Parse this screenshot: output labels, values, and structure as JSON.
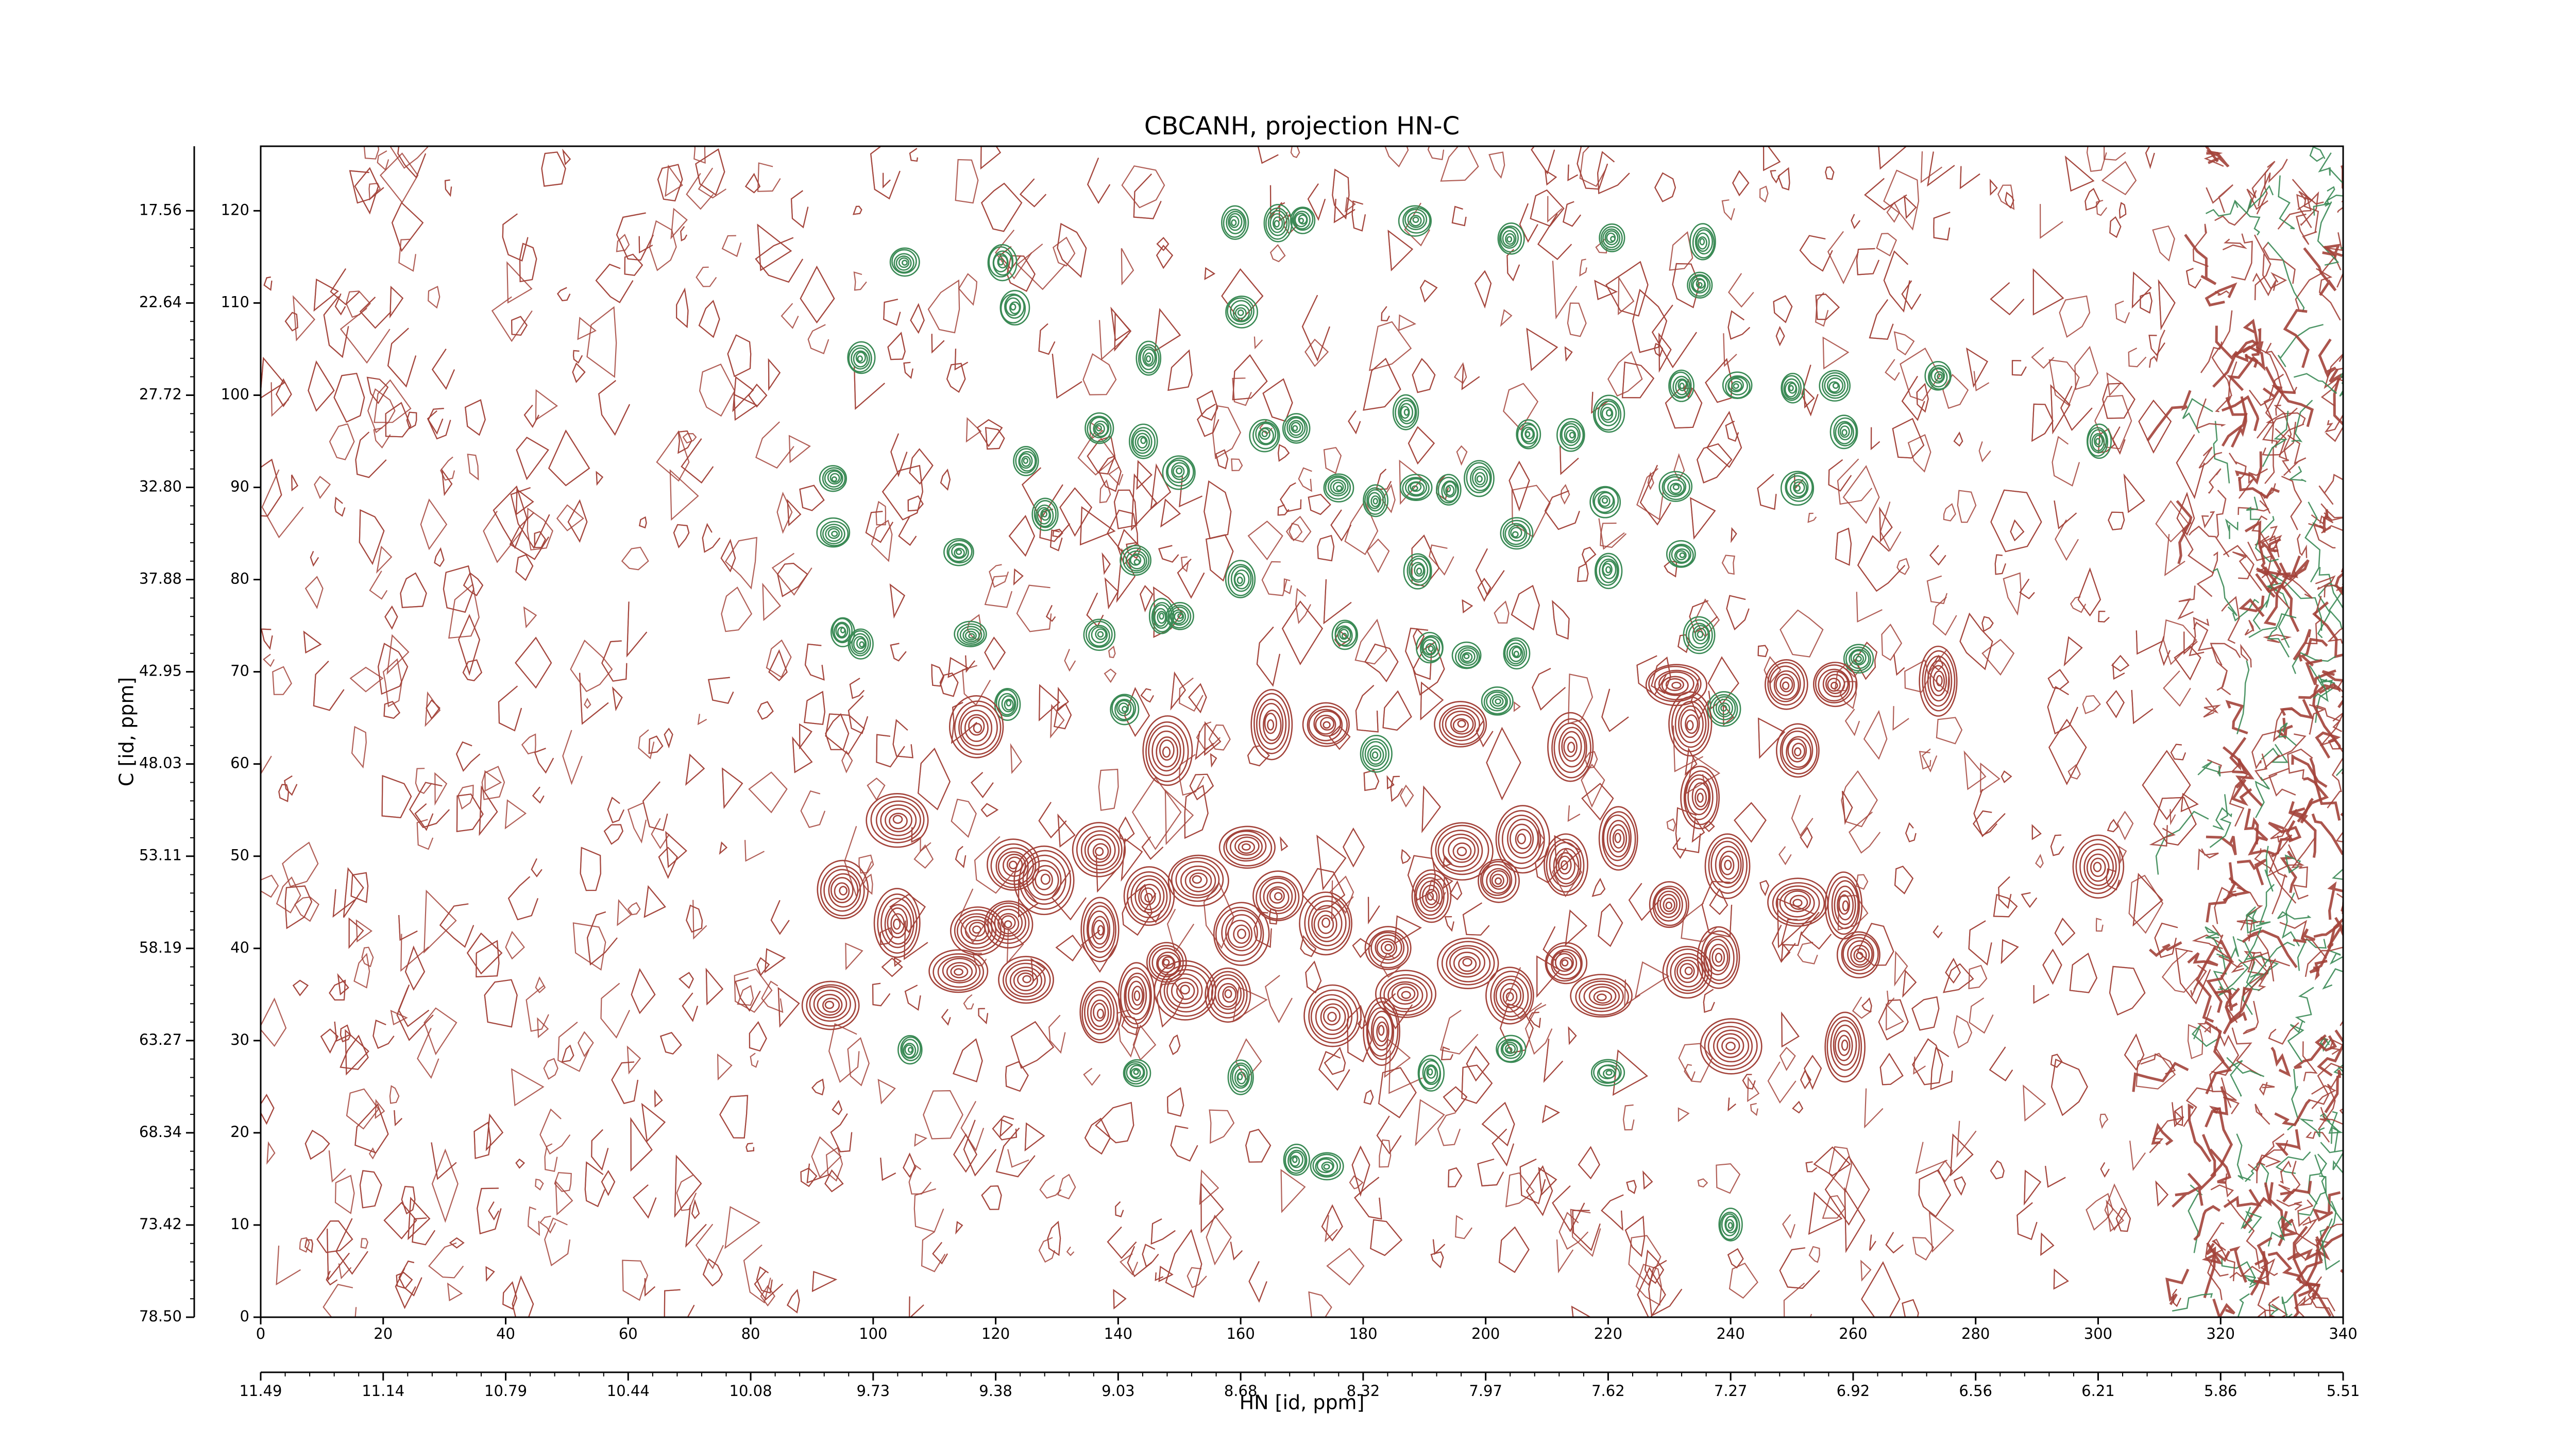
{
  "chart_data": {
    "type": "contour",
    "title": "CBCANH, projection HN-C",
    "xlabel": "HN [id, ppm]",
    "ylabel": "C [id, ppm]",
    "xlim": [
      0,
      340
    ],
    "ylim": [
      0,
      127
    ],
    "xticks": [
      0,
      20,
      40,
      60,
      80,
      100,
      120,
      140,
      160,
      180,
      200,
      220,
      240,
      260,
      280,
      300,
      320,
      340
    ],
    "yticks": [
      0,
      10,
      20,
      30,
      40,
      50,
      60,
      70,
      80,
      90,
      100,
      110,
      120
    ],
    "x2ticks": [
      {
        "value": 0,
        "label": "11.49"
      },
      {
        "value": 20,
        "label": "11.14"
      },
      {
        "value": 40,
        "label": "10.79"
      },
      {
        "value": 60,
        "label": "10.44"
      },
      {
        "value": 80,
        "label": "10.08"
      },
      {
        "value": 100,
        "label": "9.73"
      },
      {
        "value": 120,
        "label": "9.38"
      },
      {
        "value": 140,
        "label": "9.03"
      },
      {
        "value": 160,
        "label": "8.68"
      },
      {
        "value": 180,
        "label": "8.32"
      },
      {
        "value": 200,
        "label": "7.97"
      },
      {
        "value": 220,
        "label": "7.62"
      },
      {
        "value": 240,
        "label": "7.27"
      },
      {
        "value": 260,
        "label": "6.92"
      },
      {
        "value": 280,
        "label": "6.56"
      },
      {
        "value": 300,
        "label": "6.21"
      },
      {
        "value": 320,
        "label": "5.86"
      },
      {
        "value": 340,
        "label": "5.51"
      }
    ],
    "y2ticks": [
      {
        "value": 0,
        "label": "78.50"
      },
      {
        "value": 10,
        "label": "73.42"
      },
      {
        "value": 20,
        "label": "68.34"
      },
      {
        "value": 30,
        "label": "63.27"
      },
      {
        "value": 40,
        "label": "58.19"
      },
      {
        "value": 50,
        "label": "53.11"
      },
      {
        "value": 60,
        "label": "48.03"
      },
      {
        "value": 70,
        "label": "42.95"
      },
      {
        "value": 80,
        "label": "37.88"
      },
      {
        "value": 90,
        "label": "32.80"
      },
      {
        "value": 100,
        "label": "27.72"
      },
      {
        "value": 110,
        "label": "22.64"
      },
      {
        "value": 120,
        "label": "17.56"
      }
    ],
    "series": [
      {
        "color": "#3a8a55",
        "x": [
          159,
          166,
          170,
          188.6,
          204,
          220.6,
          235.5,
          235,
          105,
          121,
          123,
          160,
          145,
          98,
          274,
          250,
          257,
          232,
          241,
          137,
          144,
          164,
          169,
          187,
          207,
          214,
          220,
          258.6,
          300,
          93.6,
          125,
          150,
          176,
          182,
          188.6,
          194,
          199,
          219.5,
          231,
          251,
          93.6,
          114,
          128,
          143,
          205,
          220,
          232,
          160,
          189,
          147,
          150,
          177,
          95,
          98,
          116,
          137,
          191,
          197,
          205,
          235,
          261,
          122,
          141,
          202,
          239,
          182,
          143,
          160,
          191,
          204,
          220,
          169,
          174,
          240,
          106
        ],
        "y": [
          118.7,
          118.7,
          119,
          119,
          117,
          117,
          116.6,
          112,
          114.4,
          114.4,
          109.5,
          109,
          104,
          104,
          102,
          100.7,
          101,
          101,
          101,
          96.4,
          95,
          95.7,
          96.4,
          98.2,
          95.7,
          95.7,
          98,
          96,
          95,
          91,
          92.8,
          91.7,
          90,
          88.5,
          90,
          89.7,
          91,
          88.5,
          90,
          90,
          85,
          83,
          87,
          82,
          85,
          81,
          82.7,
          80,
          81,
          76,
          76,
          74,
          74.4,
          73,
          74,
          74,
          72.6,
          71.7,
          72,
          74,
          71.5,
          66.5,
          66,
          66.8,
          66,
          61,
          26.5,
          26,
          26.5,
          29,
          26.5,
          17,
          16.4,
          10,
          29
        ]
      },
      {
        "color": "#a3433a",
        "x": [
          117,
          148,
          165,
          174,
          196,
          214,
          233.5,
          249,
          257,
          274,
          231,
          251,
          104,
          300,
          235,
          95,
          104,
          117,
          123,
          128,
          137,
          125,
          137,
          145,
          153,
          161,
          166,
          174,
          160,
          148,
          137,
          143,
          151,
          158,
          175,
          183,
          187,
          184,
          191,
          196,
          202,
          206,
          213,
          221.6,
          197,
          204,
          213,
          219,
          230,
          239.6,
          238,
          233,
          251,
          258.6,
          261,
          240,
          93,
          114,
          122,
          258.6
        ],
        "y": [
          64,
          61.4,
          64.3,
          64.3,
          64.3,
          61.8,
          64.3,
          68.6,
          68.6,
          69,
          68.6,
          61.4,
          53.9,
          48.8,
          56.4,
          46.3,
          42.7,
          42,
          49,
          47.4,
          50.6,
          36.6,
          42,
          45.6,
          47.4,
          51,
          45.6,
          42.7,
          41.6,
          38.4,
          33,
          34.8,
          35.5,
          35,
          32.6,
          31,
          35,
          40,
          45.6,
          50.6,
          47.4,
          51.9,
          49,
          51.9,
          38.4,
          34.8,
          38.4,
          34.8,
          44.7,
          49,
          39,
          37.5,
          45,
          44.7,
          39.3,
          29.4,
          33.9,
          37.5,
          42.7,
          29.4
        ]
      }
    ]
  }
}
